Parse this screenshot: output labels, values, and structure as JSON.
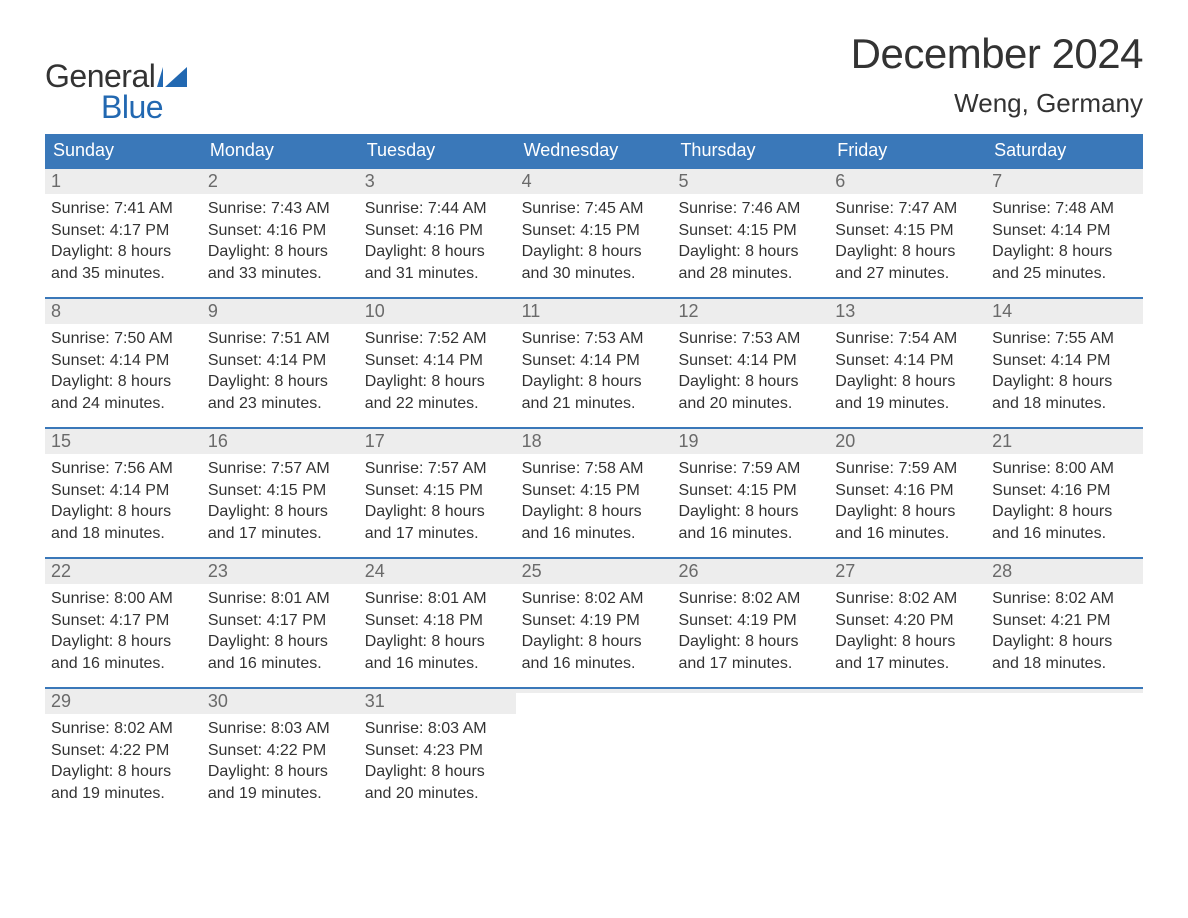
{
  "brand": {
    "word1": "General",
    "word2": "Blue",
    "flag_color": "#2268b1",
    "text_color_dark": "#333333"
  },
  "title": "December 2024",
  "location": "Weng, Germany",
  "colors": {
    "header_bg": "#3a78b9",
    "header_text": "#ffffff",
    "daynum_bg": "#ededed",
    "daynum_text": "#6a6a6a",
    "body_text": "#333333",
    "week_border": "#3a78b9",
    "page_bg": "#ffffff"
  },
  "fonts": {
    "title_size_pt": 32,
    "location_size_pt": 20,
    "weekday_size_pt": 14,
    "daynum_size_pt": 14,
    "body_size_pt": 12
  },
  "weekdays": [
    "Sunday",
    "Monday",
    "Tuesday",
    "Wednesday",
    "Thursday",
    "Friday",
    "Saturday"
  ],
  "weeks": [
    [
      {
        "num": "1",
        "sunrise": "Sunrise: 7:41 AM",
        "sunset": "Sunset: 4:17 PM",
        "day1": "Daylight: 8 hours",
        "day2": "and 35 minutes."
      },
      {
        "num": "2",
        "sunrise": "Sunrise: 7:43 AM",
        "sunset": "Sunset: 4:16 PM",
        "day1": "Daylight: 8 hours",
        "day2": "and 33 minutes."
      },
      {
        "num": "3",
        "sunrise": "Sunrise: 7:44 AM",
        "sunset": "Sunset: 4:16 PM",
        "day1": "Daylight: 8 hours",
        "day2": "and 31 minutes."
      },
      {
        "num": "4",
        "sunrise": "Sunrise: 7:45 AM",
        "sunset": "Sunset: 4:15 PM",
        "day1": "Daylight: 8 hours",
        "day2": "and 30 minutes."
      },
      {
        "num": "5",
        "sunrise": "Sunrise: 7:46 AM",
        "sunset": "Sunset: 4:15 PM",
        "day1": "Daylight: 8 hours",
        "day2": "and 28 minutes."
      },
      {
        "num": "6",
        "sunrise": "Sunrise: 7:47 AM",
        "sunset": "Sunset: 4:15 PM",
        "day1": "Daylight: 8 hours",
        "day2": "and 27 minutes."
      },
      {
        "num": "7",
        "sunrise": "Sunrise: 7:48 AM",
        "sunset": "Sunset: 4:14 PM",
        "day1": "Daylight: 8 hours",
        "day2": "and 25 minutes."
      }
    ],
    [
      {
        "num": "8",
        "sunrise": "Sunrise: 7:50 AM",
        "sunset": "Sunset: 4:14 PM",
        "day1": "Daylight: 8 hours",
        "day2": "and 24 minutes."
      },
      {
        "num": "9",
        "sunrise": "Sunrise: 7:51 AM",
        "sunset": "Sunset: 4:14 PM",
        "day1": "Daylight: 8 hours",
        "day2": "and 23 minutes."
      },
      {
        "num": "10",
        "sunrise": "Sunrise: 7:52 AM",
        "sunset": "Sunset: 4:14 PM",
        "day1": "Daylight: 8 hours",
        "day2": "and 22 minutes."
      },
      {
        "num": "11",
        "sunrise": "Sunrise: 7:53 AM",
        "sunset": "Sunset: 4:14 PM",
        "day1": "Daylight: 8 hours",
        "day2": "and 21 minutes."
      },
      {
        "num": "12",
        "sunrise": "Sunrise: 7:53 AM",
        "sunset": "Sunset: 4:14 PM",
        "day1": "Daylight: 8 hours",
        "day2": "and 20 minutes."
      },
      {
        "num": "13",
        "sunrise": "Sunrise: 7:54 AM",
        "sunset": "Sunset: 4:14 PM",
        "day1": "Daylight: 8 hours",
        "day2": "and 19 minutes."
      },
      {
        "num": "14",
        "sunrise": "Sunrise: 7:55 AM",
        "sunset": "Sunset: 4:14 PM",
        "day1": "Daylight: 8 hours",
        "day2": "and 18 minutes."
      }
    ],
    [
      {
        "num": "15",
        "sunrise": "Sunrise: 7:56 AM",
        "sunset": "Sunset: 4:14 PM",
        "day1": "Daylight: 8 hours",
        "day2": "and 18 minutes."
      },
      {
        "num": "16",
        "sunrise": "Sunrise: 7:57 AM",
        "sunset": "Sunset: 4:15 PM",
        "day1": "Daylight: 8 hours",
        "day2": "and 17 minutes."
      },
      {
        "num": "17",
        "sunrise": "Sunrise: 7:57 AM",
        "sunset": "Sunset: 4:15 PM",
        "day1": "Daylight: 8 hours",
        "day2": "and 17 minutes."
      },
      {
        "num": "18",
        "sunrise": "Sunrise: 7:58 AM",
        "sunset": "Sunset: 4:15 PM",
        "day1": "Daylight: 8 hours",
        "day2": "and 16 minutes."
      },
      {
        "num": "19",
        "sunrise": "Sunrise: 7:59 AM",
        "sunset": "Sunset: 4:15 PM",
        "day1": "Daylight: 8 hours",
        "day2": "and 16 minutes."
      },
      {
        "num": "20",
        "sunrise": "Sunrise: 7:59 AM",
        "sunset": "Sunset: 4:16 PM",
        "day1": "Daylight: 8 hours",
        "day2": "and 16 minutes."
      },
      {
        "num": "21",
        "sunrise": "Sunrise: 8:00 AM",
        "sunset": "Sunset: 4:16 PM",
        "day1": "Daylight: 8 hours",
        "day2": "and 16 minutes."
      }
    ],
    [
      {
        "num": "22",
        "sunrise": "Sunrise: 8:00 AM",
        "sunset": "Sunset: 4:17 PM",
        "day1": "Daylight: 8 hours",
        "day2": "and 16 minutes."
      },
      {
        "num": "23",
        "sunrise": "Sunrise: 8:01 AM",
        "sunset": "Sunset: 4:17 PM",
        "day1": "Daylight: 8 hours",
        "day2": "and 16 minutes."
      },
      {
        "num": "24",
        "sunrise": "Sunrise: 8:01 AM",
        "sunset": "Sunset: 4:18 PM",
        "day1": "Daylight: 8 hours",
        "day2": "and 16 minutes."
      },
      {
        "num": "25",
        "sunrise": "Sunrise: 8:02 AM",
        "sunset": "Sunset: 4:19 PM",
        "day1": "Daylight: 8 hours",
        "day2": "and 16 minutes."
      },
      {
        "num": "26",
        "sunrise": "Sunrise: 8:02 AM",
        "sunset": "Sunset: 4:19 PM",
        "day1": "Daylight: 8 hours",
        "day2": "and 17 minutes."
      },
      {
        "num": "27",
        "sunrise": "Sunrise: 8:02 AM",
        "sunset": "Sunset: 4:20 PM",
        "day1": "Daylight: 8 hours",
        "day2": "and 17 minutes."
      },
      {
        "num": "28",
        "sunrise": "Sunrise: 8:02 AM",
        "sunset": "Sunset: 4:21 PM",
        "day1": "Daylight: 8 hours",
        "day2": "and 18 minutes."
      }
    ],
    [
      {
        "num": "29",
        "sunrise": "Sunrise: 8:02 AM",
        "sunset": "Sunset: 4:22 PM",
        "day1": "Daylight: 8 hours",
        "day2": "and 19 minutes."
      },
      {
        "num": "30",
        "sunrise": "Sunrise: 8:03 AM",
        "sunset": "Sunset: 4:22 PM",
        "day1": "Daylight: 8 hours",
        "day2": "and 19 minutes."
      },
      {
        "num": "31",
        "sunrise": "Sunrise: 8:03 AM",
        "sunset": "Sunset: 4:23 PM",
        "day1": "Daylight: 8 hours",
        "day2": "and 20 minutes."
      },
      {
        "empty": true
      },
      {
        "empty": true
      },
      {
        "empty": true
      },
      {
        "empty": true
      }
    ]
  ]
}
